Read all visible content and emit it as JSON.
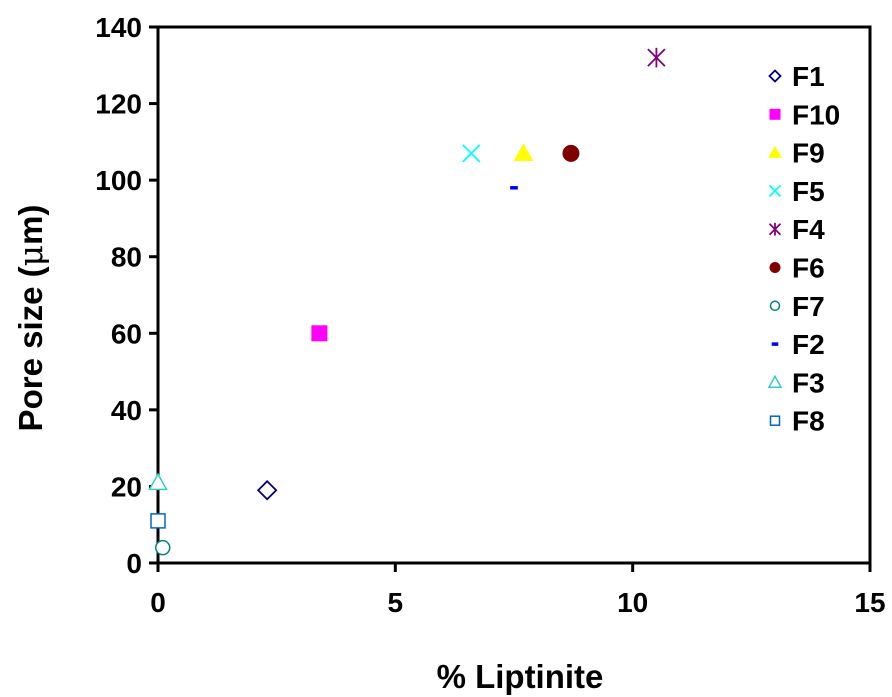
{
  "chart_data": {
    "type": "scatter",
    "title": "",
    "xlabel": "% Liptinite",
    "ylabel_prefix": "Pore size (",
    "ylabel_symbol": "μ",
    "ylabel_suffix": "m)",
    "xlim": [
      0,
      15
    ],
    "ylim": [
      0,
      140
    ],
    "xticks": [
      0,
      5,
      10,
      15
    ],
    "yticks": [
      0,
      20,
      40,
      60,
      80,
      100,
      120,
      140
    ],
    "grid": false,
    "legend_position": "right",
    "series": [
      {
        "name": "F1",
        "marker": "diamond-open",
        "color": "#000080",
        "x": 2.3,
        "y": 19
      },
      {
        "name": "F10",
        "marker": "square-filled",
        "color": "#FF00FF",
        "x": 3.4,
        "y": 60
      },
      {
        "name": "F9",
        "marker": "triangle-filled",
        "color": "#FFFF00",
        "x": 7.7,
        "y": 107
      },
      {
        "name": "F5",
        "marker": "x",
        "color": "#00FFFF",
        "x": 6.6,
        "y": 107
      },
      {
        "name": "F4",
        "marker": "star",
        "color": "#800080",
        "x": 10.5,
        "y": 132
      },
      {
        "name": "F6",
        "marker": "circle-filled",
        "color": "#800000",
        "x": 8.7,
        "y": 107
      },
      {
        "name": "F7",
        "marker": "circle-open",
        "color": "#008080",
        "x": 0.1,
        "y": 4
      },
      {
        "name": "F2",
        "marker": "dash",
        "color": "#0000FF",
        "x": 7.5,
        "y": 98
      },
      {
        "name": "F3",
        "marker": "triangle-open",
        "color": "#33CCCC",
        "x": 0.0,
        "y": 21
      },
      {
        "name": "F8",
        "marker": "square-open",
        "color": "#0066CC",
        "x": 0.0,
        "y": 11
      }
    ]
  }
}
